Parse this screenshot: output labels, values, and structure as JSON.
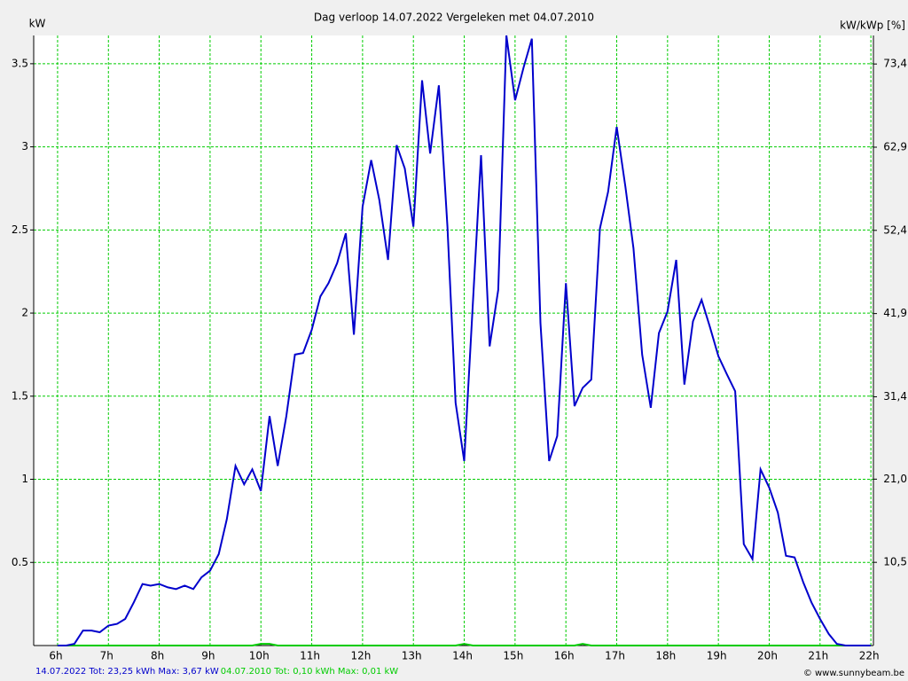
{
  "chart_data": {
    "type": "line",
    "title": "Dag  verloop 14.07.2022   Vergeleken met 04.07.2010",
    "y_label": "kW",
    "y2_label": "kW/kWp [%]",
    "credit": "© www.sunnybeam.be",
    "x": [
      6,
      6.17,
      6.33,
      6.5,
      6.67,
      6.83,
      7,
      7.17,
      7.33,
      7.5,
      7.67,
      7.83,
      8,
      8.17,
      8.33,
      8.5,
      8.67,
      8.83,
      9,
      9.17,
      9.33,
      9.5,
      9.67,
      9.83,
      10,
      10.17,
      10.33,
      10.5,
      10.67,
      10.83,
      11,
      11.17,
      11.33,
      11.5,
      11.67,
      11.83,
      12,
      12.17,
      12.33,
      12.5,
      12.67,
      12.83,
      13,
      13.17,
      13.33,
      13.5,
      13.67,
      13.83,
      14,
      14.17,
      14.33,
      14.5,
      14.67,
      14.83,
      15,
      15.17,
      15.33,
      15.5,
      15.67,
      15.83,
      16,
      16.17,
      16.33,
      16.5,
      16.67,
      16.83,
      17,
      17.17,
      17.33,
      17.5,
      17.67,
      17.83,
      18,
      18.17,
      18.33,
      18.5,
      18.67,
      18.83,
      19,
      19.17,
      19.33,
      19.5,
      19.67,
      19.83,
      20,
      20.17,
      20.33,
      20.5,
      20.67,
      20.83,
      21,
      21.17,
      21.33,
      21.5,
      21.67,
      21.83,
      22
    ],
    "series": [
      {
        "name": "14.07.2022 Tot: 23,25 kWh Max: 3,67 kW",
        "color": "#0000cc",
        "values": [
          0,
          0,
          0.01,
          0.09,
          0.09,
          0.08,
          0.12,
          0.13,
          0.16,
          0.26,
          0.37,
          0.36,
          0.37,
          0.35,
          0.34,
          0.36,
          0.34,
          0.41,
          0.45,
          0.55,
          0.76,
          1.08,
          0.97,
          1.06,
          0.93,
          1.38,
          1.08,
          1.38,
          1.75,
          1.76,
          1.9,
          2.1,
          2.18,
          2.3,
          2.48,
          1.87,
          2.64,
          2.92,
          2.68,
          2.32,
          3.01,
          2.87,
          2.52,
          3.4,
          2.96,
          3.37,
          2.52,
          1.46,
          1.11,
          2.06,
          2.95,
          1.8,
          2.14,
          3.67,
          3.28,
          3.48,
          3.65,
          1.94,
          1.11,
          1.26,
          2.18,
          1.44,
          1.55,
          1.6,
          2.51,
          2.73,
          3.12,
          2.76,
          2.39,
          1.75,
          1.43,
          1.88,
          2.01,
          2.32,
          1.57,
          1.95,
          2.08,
          1.92,
          1.74,
          1.63,
          1.53,
          0.61,
          0.52,
          1.06,
          0.95,
          0.8,
          0.54,
          0.53,
          0.38,
          0.26,
          0.16,
          0.07,
          0.01,
          0,
          0,
          0,
          0
        ]
      },
      {
        "name": "04.07.2010 Tot: 0,10 kWh Max: 0,01 kW",
        "color": "#00cc00",
        "values": [
          0,
          0,
          0,
          0,
          0,
          0,
          0,
          0,
          0,
          0,
          0,
          0,
          0,
          0,
          0,
          0,
          0,
          0,
          0,
          0,
          0,
          0,
          0,
          0,
          0.01,
          0.01,
          0,
          0,
          0,
          0,
          0,
          0,
          0,
          0,
          0,
          0,
          0,
          0,
          0,
          0,
          0,
          0,
          0,
          0,
          0,
          0,
          0,
          0,
          0.01,
          0,
          0,
          0,
          0,
          0,
          0,
          0,
          0,
          0,
          0,
          0,
          0,
          0,
          0.01,
          0,
          0,
          0,
          0,
          0,
          0,
          0,
          0,
          0,
          0,
          0,
          0,
          0,
          0,
          0,
          0,
          0,
          0,
          0,
          0,
          0,
          0,
          0,
          0,
          0,
          0,
          0,
          0,
          0,
          0,
          0,
          0,
          0,
          0
        ]
      }
    ],
    "xlim": [
      5.53,
      22.05
    ],
    "xticks": [
      {
        "value": 6,
        "label": "6h"
      },
      {
        "value": 7,
        "label": "7h"
      },
      {
        "value": 8,
        "label": "8h"
      },
      {
        "value": 9,
        "label": "9h"
      },
      {
        "value": 10,
        "label": "10h"
      },
      {
        "value": 11,
        "label": "11h"
      },
      {
        "value": 12,
        "label": "12h"
      },
      {
        "value": 13,
        "label": "13h"
      },
      {
        "value": 14,
        "label": "14h"
      },
      {
        "value": 15,
        "label": "15h"
      },
      {
        "value": 16,
        "label": "16h"
      },
      {
        "value": 17,
        "label": "17h"
      },
      {
        "value": 18,
        "label": "18h"
      },
      {
        "value": 19,
        "label": "19h"
      },
      {
        "value": 20,
        "label": "20h"
      },
      {
        "value": 21,
        "label": "21h"
      },
      {
        "value": 22,
        "label": "22h"
      }
    ],
    "ylim": [
      0,
      3.67
    ],
    "yticks": [
      0.5,
      1,
      1.5,
      2,
      2.5,
      3,
      3.5
    ],
    "y2lim": [
      0,
      77
    ],
    "y2ticks": [
      {
        "value": 10.5,
        "label": "10,5"
      },
      {
        "value": 21,
        "label": "21,0"
      },
      {
        "value": 31.4,
        "label": "31,4"
      },
      {
        "value": 41.9,
        "label": "41,9"
      },
      {
        "value": 52.4,
        "label": "52,4"
      },
      {
        "value": 62.9,
        "label": "62,9"
      },
      {
        "value": 73.4,
        "label": "73,4"
      }
    ],
    "grid": true,
    "grid_color": "#00cc00"
  }
}
